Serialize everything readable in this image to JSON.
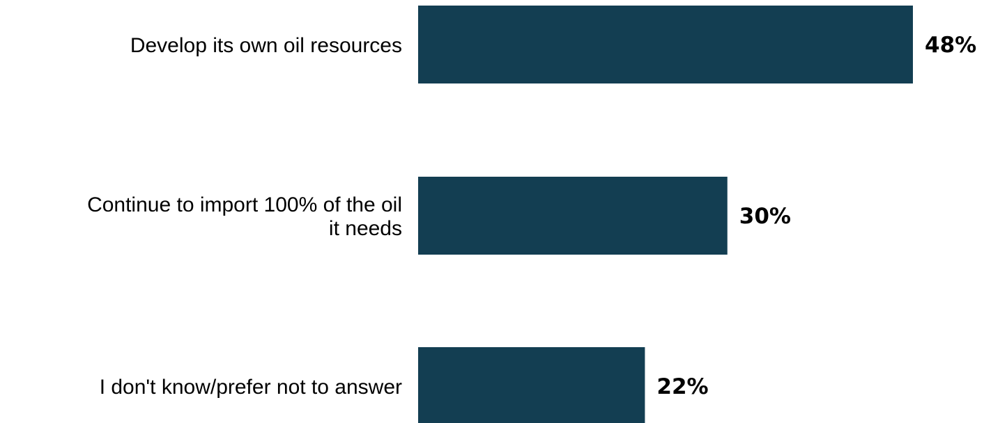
{
  "chart_data": {
    "type": "bar",
    "orientation": "horizontal",
    "categories": [
      "Develop its own oil resources",
      "Continue to import 100% of the oil it needs",
      "I don't know/prefer not to answer"
    ],
    "category_lines": [
      [
        "Develop its own oil resources"
      ],
      [
        "Continue to import 100% of the oil",
        "it needs"
      ],
      [
        "I don't know/prefer not to answer"
      ]
    ],
    "values": [
      48,
      30,
      22
    ],
    "value_labels": [
      "48%",
      "30%",
      "22%"
    ],
    "unit": "%",
    "bar_color": "#133e52",
    "title": "",
    "xlabel": "",
    "ylabel": "",
    "xlim": [
      0,
      48
    ],
    "grid": false,
    "legend": "none"
  }
}
